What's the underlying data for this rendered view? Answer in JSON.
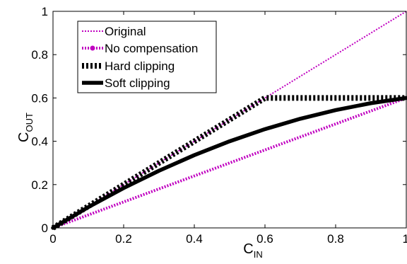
{
  "chart_data": {
    "type": "line",
    "xlabel": "C",
    "xlabel_sub": "IN",
    "ylabel": "C",
    "ylabel_sub": "OUT",
    "xlim": [
      0,
      1
    ],
    "ylim": [
      0,
      1
    ],
    "xticks": [
      "0",
      "0.2",
      "0.4",
      "0.6",
      "0.8",
      "1"
    ],
    "yticks": [
      "0",
      "0.2",
      "0.4",
      "0.6",
      "0.8",
      "1"
    ],
    "grid": false,
    "legend_position": "top-left",
    "series": [
      {
        "name": "Original",
        "color": "#c000c0",
        "style": "dotted-thin",
        "x": [
          0,
          1
        ],
        "y": [
          0,
          1
        ]
      },
      {
        "name": "No compensation",
        "color": "#c000c0",
        "style": "dotted-thick",
        "x": [
          0,
          1
        ],
        "y": [
          0,
          0.6
        ]
      },
      {
        "name": "Hard clipping",
        "color": "#000000",
        "style": "dotted-heavy",
        "x": [
          0,
          0.6,
          1
        ],
        "y": [
          0,
          0.6,
          0.6
        ]
      },
      {
        "name": "Soft clipping",
        "color": "#000000",
        "style": "solid-heavy",
        "x": [
          0,
          0.1,
          0.2,
          0.3,
          0.4,
          0.5,
          0.6,
          0.7,
          0.8,
          0.9,
          1.0
        ],
        "y": [
          0,
          0.096,
          0.184,
          0.264,
          0.336,
          0.4,
          0.456,
          0.504,
          0.544,
          0.576,
          0.6
        ]
      }
    ]
  }
}
